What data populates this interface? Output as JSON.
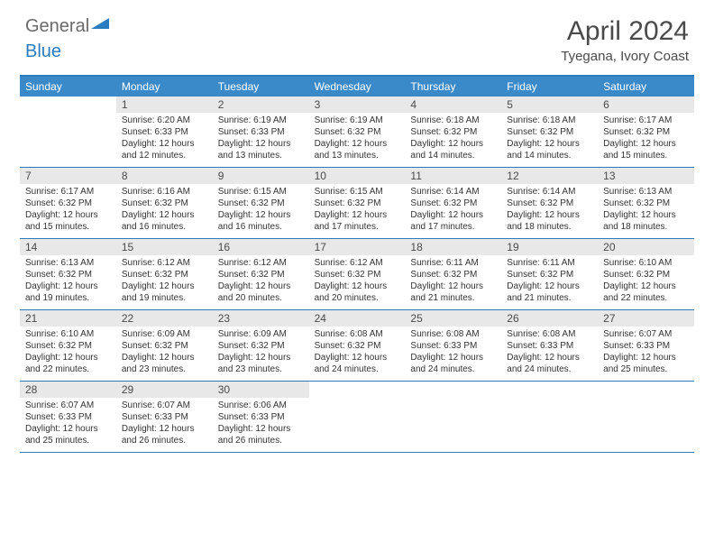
{
  "brand": {
    "part1": "General",
    "part2": "Blue"
  },
  "header": {
    "month": "April 2024",
    "location": "Tyegana, Ivory Coast"
  },
  "colors": {
    "accent": "#3a89c9",
    "accent_border": "#2b7bbf",
    "daynum_bg": "#e8e8e8",
    "text": "#333333",
    "header_text": "#4a4a4a"
  },
  "weekdays": [
    "Sunday",
    "Monday",
    "Tuesday",
    "Wednesday",
    "Thursday",
    "Friday",
    "Saturday"
  ],
  "start_offset": 1,
  "days": [
    {
      "n": 1,
      "sunrise": "6:20 AM",
      "sunset": "6:33 PM",
      "daylight": "12 hours and 12 minutes."
    },
    {
      "n": 2,
      "sunrise": "6:19 AM",
      "sunset": "6:33 PM",
      "daylight": "12 hours and 13 minutes."
    },
    {
      "n": 3,
      "sunrise": "6:19 AM",
      "sunset": "6:32 PM",
      "daylight": "12 hours and 13 minutes."
    },
    {
      "n": 4,
      "sunrise": "6:18 AM",
      "sunset": "6:32 PM",
      "daylight": "12 hours and 14 minutes."
    },
    {
      "n": 5,
      "sunrise": "6:18 AM",
      "sunset": "6:32 PM",
      "daylight": "12 hours and 14 minutes."
    },
    {
      "n": 6,
      "sunrise": "6:17 AM",
      "sunset": "6:32 PM",
      "daylight": "12 hours and 15 minutes."
    },
    {
      "n": 7,
      "sunrise": "6:17 AM",
      "sunset": "6:32 PM",
      "daylight": "12 hours and 15 minutes."
    },
    {
      "n": 8,
      "sunrise": "6:16 AM",
      "sunset": "6:32 PM",
      "daylight": "12 hours and 16 minutes."
    },
    {
      "n": 9,
      "sunrise": "6:15 AM",
      "sunset": "6:32 PM",
      "daylight": "12 hours and 16 minutes."
    },
    {
      "n": 10,
      "sunrise": "6:15 AM",
      "sunset": "6:32 PM",
      "daylight": "12 hours and 17 minutes."
    },
    {
      "n": 11,
      "sunrise": "6:14 AM",
      "sunset": "6:32 PM",
      "daylight": "12 hours and 17 minutes."
    },
    {
      "n": 12,
      "sunrise": "6:14 AM",
      "sunset": "6:32 PM",
      "daylight": "12 hours and 18 minutes."
    },
    {
      "n": 13,
      "sunrise": "6:13 AM",
      "sunset": "6:32 PM",
      "daylight": "12 hours and 18 minutes."
    },
    {
      "n": 14,
      "sunrise": "6:13 AM",
      "sunset": "6:32 PM",
      "daylight": "12 hours and 19 minutes."
    },
    {
      "n": 15,
      "sunrise": "6:12 AM",
      "sunset": "6:32 PM",
      "daylight": "12 hours and 19 minutes."
    },
    {
      "n": 16,
      "sunrise": "6:12 AM",
      "sunset": "6:32 PM",
      "daylight": "12 hours and 20 minutes."
    },
    {
      "n": 17,
      "sunrise": "6:12 AM",
      "sunset": "6:32 PM",
      "daylight": "12 hours and 20 minutes."
    },
    {
      "n": 18,
      "sunrise": "6:11 AM",
      "sunset": "6:32 PM",
      "daylight": "12 hours and 21 minutes."
    },
    {
      "n": 19,
      "sunrise": "6:11 AM",
      "sunset": "6:32 PM",
      "daylight": "12 hours and 21 minutes."
    },
    {
      "n": 20,
      "sunrise": "6:10 AM",
      "sunset": "6:32 PM",
      "daylight": "12 hours and 22 minutes."
    },
    {
      "n": 21,
      "sunrise": "6:10 AM",
      "sunset": "6:32 PM",
      "daylight": "12 hours and 22 minutes."
    },
    {
      "n": 22,
      "sunrise": "6:09 AM",
      "sunset": "6:32 PM",
      "daylight": "12 hours and 23 minutes."
    },
    {
      "n": 23,
      "sunrise": "6:09 AM",
      "sunset": "6:32 PM",
      "daylight": "12 hours and 23 minutes."
    },
    {
      "n": 24,
      "sunrise": "6:08 AM",
      "sunset": "6:32 PM",
      "daylight": "12 hours and 24 minutes."
    },
    {
      "n": 25,
      "sunrise": "6:08 AM",
      "sunset": "6:33 PM",
      "daylight": "12 hours and 24 minutes."
    },
    {
      "n": 26,
      "sunrise": "6:08 AM",
      "sunset": "6:33 PM",
      "daylight": "12 hours and 24 minutes."
    },
    {
      "n": 27,
      "sunrise": "6:07 AM",
      "sunset": "6:33 PM",
      "daylight": "12 hours and 25 minutes."
    },
    {
      "n": 28,
      "sunrise": "6:07 AM",
      "sunset": "6:33 PM",
      "daylight": "12 hours and 25 minutes."
    },
    {
      "n": 29,
      "sunrise": "6:07 AM",
      "sunset": "6:33 PM",
      "daylight": "12 hours and 26 minutes."
    },
    {
      "n": 30,
      "sunrise": "6:06 AM",
      "sunset": "6:33 PM",
      "daylight": "12 hours and 26 minutes."
    }
  ],
  "labels": {
    "sunrise": "Sunrise:",
    "sunset": "Sunset:",
    "daylight": "Daylight:"
  }
}
